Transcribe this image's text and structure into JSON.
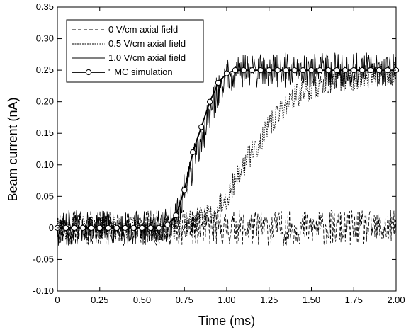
{
  "chart_data": {
    "type": "line",
    "title": "",
    "xlabel": "Time (ms)",
    "ylabel": "Beam current (nA)",
    "xlim": [
      0,
      2.0
    ],
    "ylim": [
      -0.1,
      0.35
    ],
    "x_ticks": [
      0,
      0.25,
      0.5,
      0.75,
      1.0,
      1.25,
      1.5,
      1.75,
      2.0
    ],
    "x_tick_labels": [
      "0",
      "0.25",
      "0.50",
      "0.75",
      "1.00",
      "1.25",
      "1.50",
      "1.75",
      "2.00"
    ],
    "y_ticks": [
      -0.1,
      -0.05,
      0,
      0.05,
      0.1,
      0.15,
      0.2,
      0.25,
      0.3,
      0.35
    ],
    "y_tick_labels": [
      "-0.10",
      "-0.05",
      "0",
      "0.05",
      "0.10",
      "0.15",
      "0.20",
      "0.25",
      "0.30",
      "0.35"
    ],
    "grid": false,
    "legend_position": "top-left",
    "series": [
      {
        "name": "0 V/cm axial field",
        "style": "dashed",
        "x": [
          0,
          0.25,
          0.5,
          0.75,
          1.0,
          1.25,
          1.5,
          1.75,
          2.0
        ],
        "y": [
          0,
          0,
          0,
          0,
          0,
          0,
          0,
          0,
          0
        ]
      },
      {
        "name": "0.5 V/cm axial field",
        "style": "dotted",
        "x": [
          0,
          0.25,
          0.5,
          0.7,
          0.9,
          1.0,
          1.1,
          1.2,
          1.3,
          1.4,
          1.5,
          1.6,
          1.7,
          1.8,
          1.9,
          2.0
        ],
        "y": [
          0,
          0,
          0,
          0,
          0.02,
          0.05,
          0.1,
          0.14,
          0.18,
          0.21,
          0.22,
          0.23,
          0.235,
          0.24,
          0.245,
          0.245
        ]
      },
      {
        "name": "1.0 V/cm axial field",
        "style": "solid",
        "x": [
          0,
          0.25,
          0.5,
          0.6,
          0.65,
          0.7,
          0.75,
          0.8,
          0.85,
          0.9,
          0.95,
          1.0,
          1.05,
          1.25,
          1.5,
          1.75,
          2.0
        ],
        "y": [
          0,
          0,
          0,
          0,
          0.005,
          0.02,
          0.06,
          0.1,
          0.14,
          0.18,
          0.22,
          0.24,
          0.25,
          0.25,
          0.25,
          0.25,
          0.25
        ]
      },
      {
        "name": "\"  MC simulation",
        "style": "solid-marker",
        "x": [
          0,
          0.05,
          0.1,
          0.15,
          0.2,
          0.25,
          0.3,
          0.35,
          0.4,
          0.45,
          0.5,
          0.55,
          0.6,
          0.65,
          0.7,
          0.75,
          0.8,
          0.85,
          0.9,
          0.95,
          1.0,
          1.05,
          1.1,
          1.15,
          1.2,
          1.25,
          1.3,
          1.35,
          1.4,
          1.45,
          1.5,
          1.55,
          1.6,
          1.65,
          1.7,
          1.75,
          1.8,
          1.85,
          1.9,
          1.95,
          2.0
        ],
        "y": [
          0,
          0,
          0,
          0,
          0,
          0,
          0,
          0,
          0,
          0,
          0,
          0,
          0,
          0.005,
          0.02,
          0.06,
          0.12,
          0.16,
          0.2,
          0.23,
          0.245,
          0.25,
          0.25,
          0.25,
          0.25,
          0.25,
          0.25,
          0.25,
          0.25,
          0.25,
          0.25,
          0.25,
          0.25,
          0.25,
          0.25,
          0.25,
          0.25,
          0.25,
          0.25,
          0.25,
          0.25
        ]
      }
    ]
  }
}
